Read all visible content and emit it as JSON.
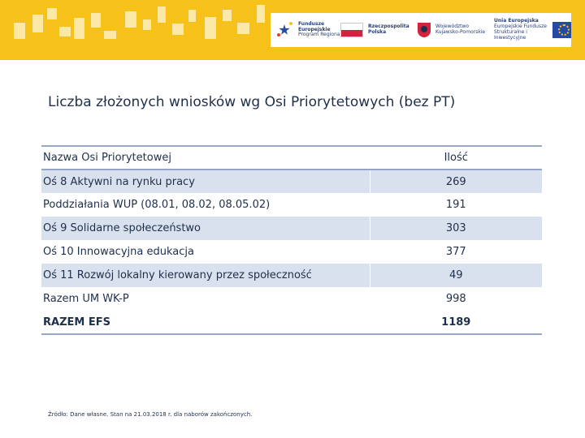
{
  "banner": {
    "fe_logo": {
      "name": "fe-logo-icon",
      "line1": "Fundusze",
      "line2": "Europejskie",
      "line3": "Program Regionalny"
    },
    "rp_logo": {
      "name": "polish-flag-icon",
      "line1": "Rzeczpospolita",
      "line2": "Polska"
    },
    "kp_logo": {
      "name": "kujawsko-pomorskie-crest-icon",
      "line1": "Województwo",
      "line2": "Kujawsko-Pomorskie"
    },
    "eu_logo": {
      "name": "eu-flag-icon",
      "line1": "Unia Europejska",
      "line2": "Europejskie Fundusze",
      "line3": "Strukturalne i Inwestycyjne"
    },
    "colors": {
      "band": "#f6c21a",
      "deco": "#fbe7a6"
    }
  },
  "title": "Liczba złożonych wniosków wg Osi Priorytetowych (bez PT)",
  "table": {
    "headers": {
      "name": "Nazwa Osi Priorytetowej",
      "value": "Ilość"
    },
    "rows": [
      {
        "name": "Oś 8 Aktywni na rynku pracy",
        "value": "269"
      },
      {
        "name": "Poddziałania WUP (08.01, 08.02, 08.05.02)",
        "value": "191"
      },
      {
        "name": "Oś 9 Solidarne społeczeństwo",
        "value": "303"
      },
      {
        "name": "Oś 10 Innowacyjna edukacja",
        "value": "377"
      },
      {
        "name": "Oś 11 Rozwój lokalny kierowany przez społeczność",
        "value": "49"
      },
      {
        "name": "Razem UM WK-P",
        "value": "998"
      }
    ],
    "total": {
      "name": "RAZEM EFS",
      "value": "1189"
    }
  },
  "source": "Źródło: Dane własne. Stan na 21.03.2018 r. dla naborów zakończonych."
}
